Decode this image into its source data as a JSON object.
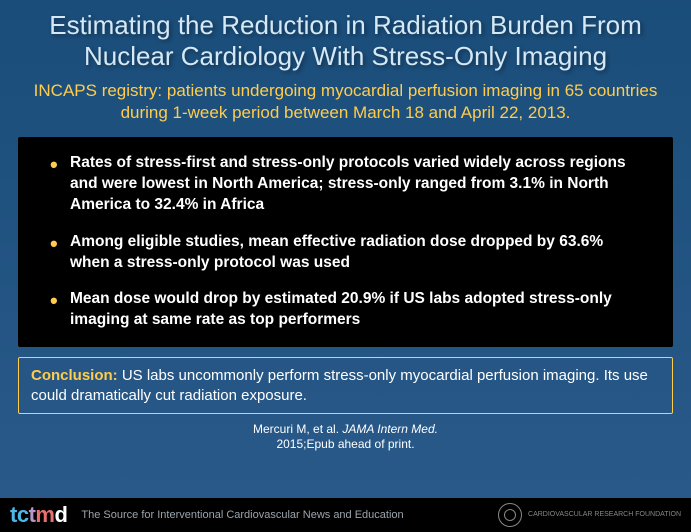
{
  "title": "Estimating the Reduction in Radiation Burden From Nuclear Cardiology With Stress-Only Imaging",
  "subtitle": "INCAPS registry: patients undergoing myocardial perfusion imaging in 65 countries during 1-week period between March 18 and April 22, 2013.",
  "bullets": [
    "Rates of stress-first and stress-only protocols varied widely across regions and were lowest in North America; stress-only ranged from 3.1% in North America to 32.4% in Africa",
    "Among eligible studies, mean effective radiation dose dropped by 63.6% when a stress-only protocol was used",
    "Mean dose would drop by estimated 20.9% if US labs adopted stress-only imaging at same rate as top performers"
  ],
  "conclusion": {
    "label": "Conclusion:",
    "text": " US labs uncommonly perform stress-only myocardial perfusion imaging. Its use could dramatically cut radiation exposure."
  },
  "citation": {
    "authors": "Mercuri M, et al. ",
    "journal": "JAMA Intern Med.",
    "rest": " 2015;Epub ahead of print."
  },
  "footer": {
    "logo": {
      "t1": "t",
      "c": "c",
      "t2": "t",
      "m": "m",
      "d": "d"
    },
    "tagline": "The Source for Interventional Cardiovascular News and Education",
    "badge": "Cardiovascular Research Foundation"
  },
  "colors": {
    "bg_top": "#1a4d7a",
    "bg_bottom": "#2a5a8a",
    "title_color": "#d4e8f5",
    "accent": "#ffcc4d",
    "box_bg": "#000000",
    "text": "#ffffff"
  }
}
